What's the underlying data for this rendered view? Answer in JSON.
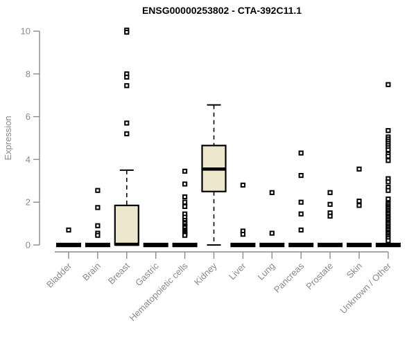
{
  "chart_data": {
    "type": "boxplot",
    "title": "ENSG00000253802 - CTA-392C11.1",
    "ylabel": "Expression",
    "xlabel": "",
    "ylim": [
      0,
      10
    ],
    "yticks": [
      0,
      2,
      4,
      6,
      8,
      10
    ],
    "grid": false,
    "legend": "none",
    "colors": {
      "box_fill": "#EDE8CD",
      "box_stroke": "#000000",
      "axis": "#8a8a8a",
      "tick_label": "#8a8a8a",
      "title": "#000000"
    },
    "categories": [
      "Bladder",
      "Brain",
      "Breast",
      "Gastric",
      "Hematopoietic cells",
      "Kidney",
      "Liver",
      "Lung",
      "Pancreas",
      "Prostate",
      "Skin",
      "Unknown / Other"
    ],
    "boxes": [
      {
        "category": "Bladder",
        "min": 0,
        "q1": 0,
        "median": 0,
        "q3": 0,
        "max": 0,
        "outliers": [
          0.7
        ]
      },
      {
        "category": "Brain",
        "min": 0,
        "q1": 0,
        "median": 0,
        "q3": 0,
        "max": 0,
        "outliers": [
          2.55,
          1.75,
          0.9,
          0.55,
          0.45
        ]
      },
      {
        "category": "Breast",
        "min": 0,
        "q1": 0,
        "median": 0.03,
        "q3": 1.85,
        "max": 3.5,
        "outliers": [
          10.05,
          9.95,
          8.0,
          7.85,
          7.45,
          5.7,
          5.2
        ]
      },
      {
        "category": "Gastric",
        "min": 0,
        "q1": 0,
        "median": 0,
        "q3": 0,
        "max": 0,
        "outliers": []
      },
      {
        "category": "Hematopoietic cells",
        "min": 0,
        "q1": 0,
        "median": 0,
        "q3": 0,
        "max": 0,
        "outliers": [
          3.45,
          2.85,
          2.25,
          2.0,
          1.8,
          1.45,
          1.3,
          1.15,
          1.05,
          1.0,
          0.9,
          0.85,
          0.8,
          0.7,
          0.65,
          0.6,
          0.55,
          0.5,
          0.45
        ]
      },
      {
        "category": "Kidney",
        "min": 0,
        "q1": 2.5,
        "median": 3.55,
        "q3": 4.65,
        "max": 6.55,
        "outliers": []
      },
      {
        "category": "Liver",
        "min": 0,
        "q1": 0,
        "median": 0,
        "q3": 0,
        "max": 0,
        "outliers": [
          2.8,
          0.65,
          0.5
        ]
      },
      {
        "category": "Lung",
        "min": 0,
        "q1": 0,
        "median": 0,
        "q3": 0,
        "max": 0,
        "outliers": [
          2.45,
          0.55
        ]
      },
      {
        "category": "Pancreas",
        "min": 0,
        "q1": 0,
        "median": 0,
        "q3": 0,
        "max": 0,
        "outliers": [
          4.3,
          3.25,
          2.0,
          1.45,
          0.7
        ]
      },
      {
        "category": "Prostate",
        "min": 0,
        "q1": 0,
        "median": 0,
        "q3": 0,
        "max": 0,
        "outliers": [
          2.45,
          1.9,
          1.5,
          1.35
        ]
      },
      {
        "category": "Skin",
        "min": 0,
        "q1": 0,
        "median": 0,
        "q3": 0,
        "max": 0,
        "outliers": [
          3.55,
          2.05,
          1.85
        ]
      },
      {
        "category": "Unknown / Other",
        "min": 0,
        "q1": 0,
        "median": 0,
        "q3": 0,
        "max": 0,
        "outliers": [
          7.5,
          5.35,
          5.05,
          4.95,
          4.85,
          4.75,
          4.65,
          4.55,
          4.45,
          4.25,
          4.15,
          3.95,
          3.1,
          2.95,
          2.7,
          2.55,
          2.15,
          1.95,
          1.88,
          1.8,
          1.73,
          1.65,
          1.58,
          1.5,
          1.43,
          1.35,
          1.28,
          1.2,
          1.13,
          1.05,
          0.98,
          0.9,
          0.83,
          0.75,
          0.68,
          0.6,
          0.53,
          0.45,
          0.38,
          0.3,
          0.2
        ]
      }
    ]
  }
}
